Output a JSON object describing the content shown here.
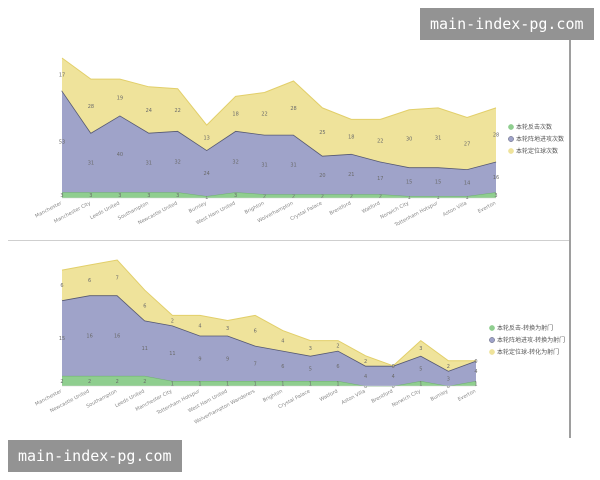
{
  "watermark_top": "main-index-pg.com",
  "watermark_bottom": "main-index-pg.com",
  "chart_data": [
    {
      "type": "area",
      "stacked": true,
      "title": "",
      "xlabel": "",
      "ylabel": "",
      "legend_position": "right",
      "categories": [
        "Manchester",
        "Manchester City",
        "Leeds United",
        "Southampton",
        "Newcastle United",
        "Burnley",
        "West Ham United",
        "Brighton",
        "Wolverhampton",
        "Crystal Palace",
        "Brentford",
        "Watford",
        "Norwich City",
        "Tottenham Hotspur",
        "Aston Villa",
        "Everton"
      ],
      "series": [
        {
          "name": "本轮反击次数",
          "color": "#8fce8f",
          "values": [
            3,
            3,
            3,
            3,
            3,
            1,
            3,
            2,
            2,
            2,
            2,
            2,
            1,
            1,
            1,
            3
          ]
        },
        {
          "name": "本轮阵地进攻次数",
          "color": "#9fa3c9",
          "values": [
            53,
            31,
            40,
            31,
            32,
            24,
            32,
            31,
            31,
            20,
            21,
            17,
            15,
            15,
            14,
            16
          ]
        },
        {
          "name": "本轮定位球次数",
          "color": "#efe39b",
          "values": [
            17,
            28,
            19,
            24,
            22,
            13,
            18,
            22,
            28,
            25,
            18,
            22,
            30,
            31,
            27,
            28
          ]
        }
      ]
    },
    {
      "type": "area",
      "stacked": true,
      "title": "",
      "xlabel": "",
      "ylabel": "",
      "legend_position": "right",
      "categories": [
        "Manchester",
        "Newcastle United",
        "Southampton",
        "Leeds United",
        "Manchester City",
        "Tottenham Hotspur",
        "West Ham United",
        "Wolverhampton Wanderers",
        "Brighton",
        "Crystal Palace",
        "Watford",
        "Aston Villa",
        "Brentford",
        "Norwich City",
        "Burnley",
        "Everton"
      ],
      "series": [
        {
          "name": "本轮反击-转换为射门",
          "color": "#8fce8f",
          "values": [
            2,
            2,
            2,
            2,
            1,
            1,
            1,
            1,
            1,
            1,
            1,
            0,
            0,
            1,
            0,
            1
          ]
        },
        {
          "name": "本轮阵地进攻-转换为射门",
          "color": "#9fa3c9",
          "values": [
            15,
            16,
            16,
            11,
            11,
            9,
            9,
            7,
            6,
            5,
            6,
            4,
            4,
            5,
            3,
            4
          ]
        },
        {
          "name": "本轮定位球-转化为射门",
          "color": "#efe39b",
          "values": [
            6,
            6,
            7,
            6,
            2,
            4,
            3,
            6,
            4,
            3,
            2,
            2,
            0,
            3,
            2,
            0
          ]
        }
      ]
    }
  ]
}
